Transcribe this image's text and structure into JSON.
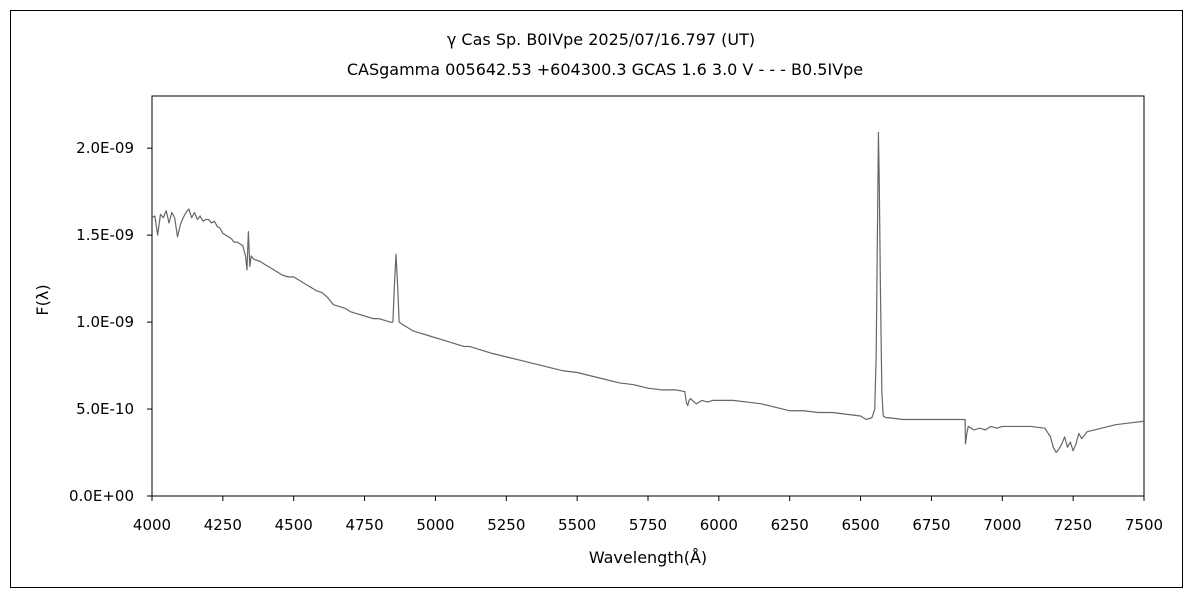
{
  "chart_data": {
    "type": "line",
    "title": "γ Cas   Sp. B0IVpe   2025/07/16.797 (UT)",
    "subtitle": "CASgamma 005642.53 +604300.3 GCAS 1.6 3.0 V - - - B0.5IVpe",
    "xlabel": "Wavelength(Å)",
    "ylabel": "F(λ)",
    "xlim": [
      4000,
      7500
    ],
    "ylim": [
      0,
      2.3e-09
    ],
    "xticks": [
      4000,
      4250,
      4500,
      4750,
      5000,
      5250,
      5500,
      5750,
      6000,
      6250,
      6500,
      6750,
      7000,
      7250,
      7500
    ],
    "xtick_labels": [
      "4000",
      "4250",
      "4500",
      "4750",
      "5000",
      "5250",
      "5500",
      "5750",
      "6000",
      "6250",
      "6500",
      "6750",
      "7000",
      "7250",
      "7500"
    ],
    "yticks": [
      0,
      5e-10,
      1e-09,
      1.5e-09,
      2e-09
    ],
    "ytick_labels": [
      "0.0E+00",
      "5.0E-10",
      "1.0E-09",
      "1.5E-09",
      "2.0E-09"
    ],
    "grid": false,
    "series": [
      {
        "color": "#666666",
        "x": [
          4000,
          4010,
          4020,
          4030,
          4040,
          4050,
          4060,
          4070,
          4080,
          4090,
          4100,
          4110,
          4120,
          4130,
          4140,
          4150,
          4160,
          4170,
          4180,
          4190,
          4200,
          4210,
          4220,
          4230,
          4240,
          4250,
          4260,
          4270,
          4280,
          4290,
          4300,
          4310,
          4320,
          4330,
          4335,
          4340,
          4345,
          4350,
          4360,
          4380,
          4400,
          4420,
          4440,
          4460,
          4480,
          4500,
          4520,
          4540,
          4560,
          4580,
          4600,
          4620,
          4640,
          4660,
          4680,
          4700,
          4720,
          4740,
          4760,
          4780,
          4800,
          4820,
          4840,
          4850,
          4855,
          4861,
          4867,
          4872,
          4880,
          4900,
          4920,
          4940,
          4960,
          4980,
          5000,
          5020,
          5040,
          5060,
          5080,
          5100,
          5120,
          5140,
          5160,
          5180,
          5200,
          5250,
          5300,
          5350,
          5400,
          5450,
          5500,
          5550,
          5600,
          5650,
          5700,
          5750,
          5800,
          5850,
          5880,
          5885,
          5890,
          5895,
          5900,
          5920,
          5940,
          5960,
          5980,
          6000,
          6050,
          6100,
          6150,
          6200,
          6250,
          6300,
          6350,
          6400,
          6450,
          6500,
          6520,
          6540,
          6550,
          6555,
          6560,
          6563,
          6566,
          6570,
          6575,
          6580,
          6590,
          6600,
          6650,
          6700,
          6750,
          6800,
          6850,
          6869,
          6870,
          6875,
          6880,
          6900,
          6920,
          6940,
          6960,
          6980,
          7000,
          7050,
          7100,
          7150,
          7170,
          7180,
          7190,
          7200,
          7210,
          7220,
          7230,
          7240,
          7250,
          7260,
          7270,
          7280,
          7300,
          7350,
          7400,
          7450,
          7500
        ],
        "y": [
          1.6e-09,
          1.61e-09,
          1.5e-09,
          1.62e-09,
          1.6e-09,
          1.64e-09,
          1.57e-09,
          1.63e-09,
          1.6e-09,
          1.49e-09,
          1.56e-09,
          1.6e-09,
          1.63e-09,
          1.65e-09,
          1.6e-09,
          1.63e-09,
          1.59e-09,
          1.61e-09,
          1.58e-09,
          1.59e-09,
          1.59e-09,
          1.57e-09,
          1.58e-09,
          1.55e-09,
          1.54e-09,
          1.51e-09,
          1.5e-09,
          1.49e-09,
          1.48e-09,
          1.46e-09,
          1.46e-09,
          1.45e-09,
          1.44e-09,
          1.38e-09,
          1.3e-09,
          1.52e-09,
          1.32e-09,
          1.38e-09,
          1.36e-09,
          1.35e-09,
          1.33e-09,
          1.31e-09,
          1.29e-09,
          1.27e-09,
          1.26e-09,
          1.26e-09,
          1.24e-09,
          1.22e-09,
          1.2e-09,
          1.18e-09,
          1.17e-09,
          1.14e-09,
          1.1e-09,
          1.09e-09,
          1.08e-09,
          1.06e-09,
          1.05e-09,
          1.04e-09,
          1.03e-09,
          1.02e-09,
          1.02e-09,
          1.01e-09,
          1e-09,
          1e-09,
          1.2e-09,
          1.39e-09,
          1.2e-09,
          1e-09,
          9.9e-10,
          9.7e-10,
          9.5e-10,
          9.4e-10,
          9.3e-10,
          9.2e-10,
          9.1e-10,
          9e-10,
          8.9e-10,
          8.8e-10,
          8.7e-10,
          8.6e-10,
          8.6e-10,
          8.5e-10,
          8.4e-10,
          8.3e-10,
          8.2e-10,
          8e-10,
          7.8e-10,
          7.6e-10,
          7.4e-10,
          7.2e-10,
          7.1e-10,
          6.9e-10,
          6.7e-10,
          6.5e-10,
          6.4e-10,
          6.2e-10,
          6.1e-10,
          6.1e-10,
          6e-10,
          5.4e-10,
          5.2e-10,
          5.5e-10,
          5.6e-10,
          5.3e-10,
          5.5e-10,
          5.4e-10,
          5.5e-10,
          5.5e-10,
          5.5e-10,
          5.4e-10,
          5.3e-10,
          5.1e-10,
          4.9e-10,
          4.9e-10,
          4.8e-10,
          4.8e-10,
          4.7e-10,
          4.6e-10,
          4.4e-10,
          4.5e-10,
          5e-10,
          8e-10,
          1.6e-09,
          2.09e-09,
          1.8e-09,
          1.2e-09,
          6e-10,
          4.6e-10,
          4.5e-10,
          4.5e-10,
          4.4e-10,
          4.4e-10,
          4.4e-10,
          4.4e-10,
          4.4e-10,
          4.4e-10,
          3e-10,
          3.6e-10,
          4e-10,
          3.8e-10,
          3.9e-10,
          3.8e-10,
          4e-10,
          3.9e-10,
          4e-10,
          4e-10,
          4e-10,
          3.9e-10,
          3.4e-10,
          2.8e-10,
          2.5e-10,
          2.7e-10,
          3e-10,
          3.4e-10,
          2.8e-10,
          3.1e-10,
          2.6e-10,
          3e-10,
          3.6e-10,
          3.3e-10,
          3.7e-10,
          3.9e-10,
          4.1e-10,
          4.2e-10,
          4.3e-10
        ]
      }
    ]
  }
}
